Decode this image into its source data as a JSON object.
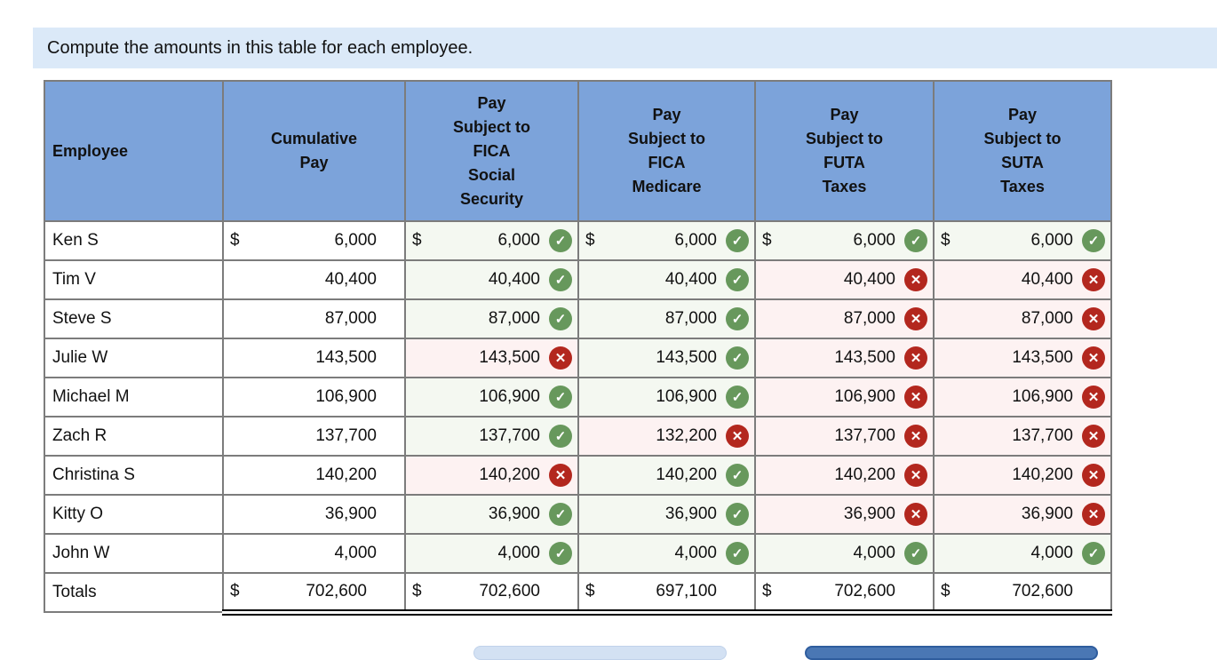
{
  "banner": {
    "text": "Compute the amounts in this table for each employee."
  },
  "table": {
    "columns": [
      {
        "label": "Employee"
      },
      {
        "label": "Cumulative\nPay"
      },
      {
        "label": "Pay\nSubject to\nFICA\nSocial\nSecurity"
      },
      {
        "label": "Pay\nSubject to\nFICA\nMedicare"
      },
      {
        "label": "Pay\nSubject to\nFUTA\nTaxes"
      },
      {
        "label": "Pay\nSubject to\nSUTA\nTaxes"
      }
    ],
    "rows": [
      {
        "employee": "Ken S",
        "cum_dollar": "$",
        "cum": "6,000",
        "answers": [
          {
            "dollar": "$",
            "value": "6,000",
            "status": "correct"
          },
          {
            "dollar": "$",
            "value": "6,000",
            "status": "correct"
          },
          {
            "dollar": "$",
            "value": "6,000",
            "status": "correct"
          },
          {
            "dollar": "$",
            "value": "6,000",
            "status": "correct"
          }
        ]
      },
      {
        "employee": "Tim V",
        "cum": "40,400",
        "answers": [
          {
            "value": "40,400",
            "status": "correct"
          },
          {
            "value": "40,400",
            "status": "correct"
          },
          {
            "value": "40,400",
            "status": "wrong"
          },
          {
            "value": "40,400",
            "status": "wrong"
          }
        ]
      },
      {
        "employee": "Steve S",
        "cum": "87,000",
        "answers": [
          {
            "value": "87,000",
            "status": "correct"
          },
          {
            "value": "87,000",
            "status": "correct"
          },
          {
            "value": "87,000",
            "status": "wrong"
          },
          {
            "value": "87,000",
            "status": "wrong"
          }
        ]
      },
      {
        "employee": "Julie W",
        "cum": "143,500",
        "answers": [
          {
            "value": "143,500",
            "status": "wrong"
          },
          {
            "value": "143,500",
            "status": "correct"
          },
          {
            "value": "143,500",
            "status": "wrong"
          },
          {
            "value": "143,500",
            "status": "wrong"
          }
        ]
      },
      {
        "employee": "Michael M",
        "cum": "106,900",
        "answers": [
          {
            "value": "106,900",
            "status": "correct"
          },
          {
            "value": "106,900",
            "status": "correct"
          },
          {
            "value": "106,900",
            "status": "wrong"
          },
          {
            "value": "106,900",
            "status": "wrong"
          }
        ]
      },
      {
        "employee": "Zach R",
        "cum": "137,700",
        "answers": [
          {
            "value": "137,700",
            "status": "correct"
          },
          {
            "value": "132,200",
            "status": "wrong"
          },
          {
            "value": "137,700",
            "status": "wrong"
          },
          {
            "value": "137,700",
            "status": "wrong"
          }
        ]
      },
      {
        "employee": "Christina S",
        "cum": "140,200",
        "answers": [
          {
            "value": "140,200",
            "status": "wrong"
          },
          {
            "value": "140,200",
            "status": "correct"
          },
          {
            "value": "140,200",
            "status": "wrong"
          },
          {
            "value": "140,200",
            "status": "wrong"
          }
        ]
      },
      {
        "employee": "Kitty O",
        "cum": "36,900",
        "answers": [
          {
            "value": "36,900",
            "status": "correct"
          },
          {
            "value": "36,900",
            "status": "correct"
          },
          {
            "value": "36,900",
            "status": "wrong"
          },
          {
            "value": "36,900",
            "status": "wrong"
          }
        ]
      },
      {
        "employee": "John W",
        "cum": "4,000",
        "answers": [
          {
            "value": "4,000",
            "status": "correct"
          },
          {
            "value": "4,000",
            "status": "correct"
          },
          {
            "value": "4,000",
            "status": "correct"
          },
          {
            "value": "4,000",
            "status": "correct"
          }
        ]
      }
    ],
    "totals": {
      "label": "Totals",
      "dollar": "$",
      "values": [
        "702,600",
        "702,600",
        "697,100",
        "702,600",
        "702,600"
      ]
    }
  },
  "icons": {
    "correct_glyph": "✓",
    "wrong_glyph": "✕"
  },
  "colors": {
    "banner_bg": "#dbe9f8",
    "header_bg": "#7ca3da",
    "ok_bg": "#f4f8f1",
    "bad_bg": "#fdf2f2",
    "ok_badge": "#67985c",
    "bad_badge": "#b3271e",
    "border": "#7c7c7c",
    "text": "#111111",
    "light_button_bg": "#d3e1f3",
    "dark_button_bg": "#4a77b4"
  }
}
